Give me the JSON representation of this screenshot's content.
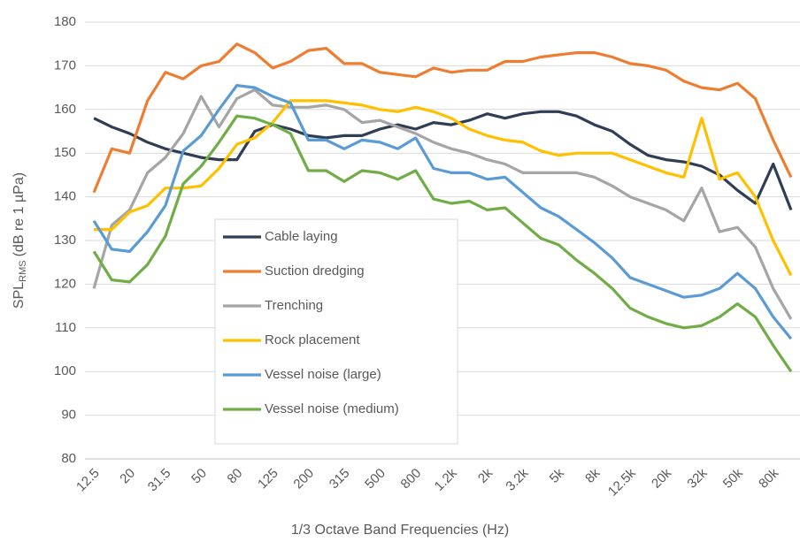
{
  "chart_data": {
    "type": "line",
    "x_label": "1/3 Octave Band Frequencies (Hz)",
    "y_label": {
      "main": "SPL",
      "subscript": "RMS",
      "rest": "(dB re 1 µPa)"
    },
    "categories": [
      "12.5",
      null,
      "20",
      null,
      "31.5",
      null,
      "50",
      null,
      "80",
      null,
      "125",
      null,
      "200",
      null,
      "315",
      null,
      "500",
      null,
      "800",
      null,
      "1.2k",
      null,
      "2k",
      null,
      "3.2k",
      null,
      "5k",
      null,
      "8k",
      null,
      "12.5k",
      null,
      "20k",
      null,
      "32k",
      null,
      "50k",
      null,
      "80k",
      null
    ],
    "ylim": [
      80,
      180
    ],
    "yticks": [
      80,
      90,
      100,
      110,
      120,
      130,
      140,
      150,
      160,
      170,
      180
    ],
    "grid": true,
    "series": [
      {
        "name": "Cable laying",
        "color": "#2f3d55",
        "values": [
          158,
          156,
          154.5,
          152.5,
          151,
          150,
          149,
          148.5,
          148.5,
          155,
          156.5,
          155.5,
          154,
          153.5,
          154,
          154,
          155.5,
          156.5,
          155.5,
          157,
          156.5,
          157.5,
          159,
          158,
          159,
          159.5,
          159.5,
          158.5,
          156.5,
          155,
          152,
          149.5,
          148.5,
          148,
          147,
          145,
          141.5,
          138.5,
          147.5,
          137
        ]
      },
      {
        "name": "Suction dredging",
        "color": "#ed7d31",
        "values": [
          141,
          151,
          150,
          162,
          168.5,
          167,
          170,
          171,
          175,
          173,
          169.5,
          171,
          173.5,
          174,
          170.5,
          170.5,
          168.5,
          168,
          167.5,
          169.5,
          168.5,
          169,
          169,
          171,
          171,
          172,
          172.5,
          173,
          173,
          172,
          170.5,
          170,
          169,
          166.5,
          165,
          164.5,
          166,
          162.5,
          153,
          144.5
        ]
      },
      {
        "name": "Trenching",
        "color": "#a5a5a5",
        "values": [
          119,
          133.5,
          137,
          145.5,
          149,
          154.5,
          163,
          156,
          162.5,
          164.5,
          161,
          160.5,
          160.5,
          161,
          160,
          157,
          157.5,
          156,
          154.5,
          152.5,
          151,
          150,
          148.5,
          147.5,
          145.5,
          145.5,
          145.5,
          145.5,
          144.5,
          142.5,
          140,
          138.5,
          137,
          134.5,
          142,
          132,
          133,
          128.5,
          119,
          112
        ]
      },
      {
        "name": "Rock placement",
        "color": "#ffc000",
        "values": [
          132.5,
          132.5,
          136.5,
          138,
          142,
          142,
          142.5,
          146.5,
          152,
          153.5,
          157,
          162,
          162,
          162,
          161.5,
          161,
          160,
          159.5,
          160.5,
          159.5,
          158,
          155.5,
          154,
          153,
          152.5,
          150.5,
          149.5,
          150,
          150,
          150,
          148.5,
          147,
          145.5,
          144.5,
          158,
          144,
          145.5,
          140,
          130,
          122
        ]
      },
      {
        "name": "Vessel noise (large)",
        "color": "#5b9bd5",
        "values": [
          134.5,
          128,
          127.5,
          132,
          138,
          150.5,
          154,
          160,
          165.5,
          165,
          163,
          161.5,
          153,
          153,
          151,
          153,
          152.5,
          151,
          153.5,
          146.5,
          145.5,
          145.5,
          144,
          144.5,
          141,
          137.5,
          135.5,
          132.5,
          129.5,
          126,
          121.5,
          120,
          118.5,
          117,
          117.5,
          119,
          122.5,
          119,
          112.5,
          107.5
        ]
      },
      {
        "name": "Vessel noise (medium)",
        "color": "#70ad47",
        "values": [
          127.5,
          121,
          120.5,
          124.5,
          131,
          143,
          147,
          152.5,
          158.5,
          158,
          156.5,
          154.5,
          146,
          146,
          143.5,
          146,
          145.5,
          144,
          146,
          139.5,
          138.5,
          139,
          137,
          137.5,
          134,
          130.5,
          129,
          125.5,
          122.5,
          119,
          114.5,
          112.5,
          111,
          110,
          110.5,
          112.5,
          115.5,
          112.5,
          106,
          100
        ]
      }
    ]
  }
}
